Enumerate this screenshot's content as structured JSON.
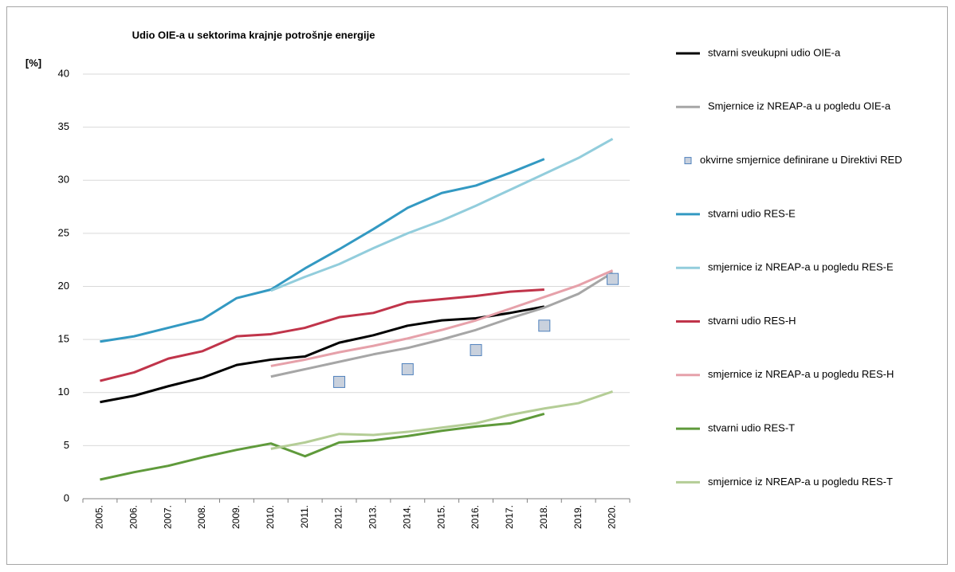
{
  "chart_data": {
    "type": "line",
    "title": "Udio OIE-a u sektorima krajnje potrošnje energije",
    "y_label": "[%]",
    "categories": [
      "2005.",
      "2006.",
      "2007.",
      "2008.",
      "2009.",
      "2010.",
      "2011.",
      "2012.",
      "2013.",
      "2014.",
      "2015.",
      "2016.",
      "2017.",
      "2018.",
      "2019.",
      "2020."
    ],
    "ylim": [
      0,
      40
    ],
    "yticks": [
      0,
      5,
      10,
      15,
      20,
      25,
      30,
      35,
      40
    ],
    "grid": true,
    "legend": "right",
    "series": [
      {
        "name": "stvarni sveukupni udio OIE-a",
        "color": "#000000",
        "style": "line",
        "values": [
          9.1,
          9.7,
          10.6,
          11.4,
          12.6,
          13.1,
          13.4,
          14.7,
          15.4,
          16.3,
          16.8,
          17.0,
          17.5,
          18.1,
          null,
          null
        ]
      },
      {
        "name": "Smjernice iz NREAP-a u pogledu OIE-a",
        "color": "#a6a6a6",
        "style": "line",
        "values": [
          null,
          null,
          null,
          null,
          null,
          11.5,
          12.2,
          12.9,
          13.6,
          14.2,
          15.0,
          15.9,
          17.0,
          18.0,
          19.3,
          21.3
        ]
      },
      {
        "name": "okvirne smjernice definirane u Direktivi RED",
        "color": "#c9d1dd",
        "style": "markers",
        "values": [
          null,
          null,
          null,
          null,
          null,
          null,
          null,
          11.0,
          null,
          12.2,
          null,
          14.0,
          null,
          16.3,
          null,
          20.7
        ]
      },
      {
        "name": "stvarni udio RES-E",
        "color": "#3399c2",
        "style": "line",
        "values": [
          14.8,
          15.3,
          16.1,
          16.9,
          18.9,
          19.7,
          21.7,
          23.5,
          25.4,
          27.4,
          28.8,
          29.5,
          30.7,
          32.0,
          null,
          null
        ]
      },
      {
        "name": "smjernice iz NREAP-a u pogledu RES-E",
        "color": "#92cddc",
        "style": "line",
        "values": [
          null,
          null,
          null,
          null,
          null,
          19.6,
          20.9,
          22.1,
          23.6,
          25.0,
          26.2,
          27.6,
          29.1,
          30.6,
          32.1,
          33.9
        ]
      },
      {
        "name": "stvarni udio RES-H",
        "color": "#c0344a",
        "style": "line",
        "values": [
          11.1,
          11.9,
          13.2,
          13.9,
          15.3,
          15.5,
          16.1,
          17.1,
          17.5,
          18.5,
          18.8,
          19.1,
          19.5,
          19.7,
          null,
          null
        ]
      },
      {
        "name": "smjernice iz NREAP-a u pogledu RES-H",
        "color": "#e6a1aa",
        "style": "line",
        "values": [
          null,
          null,
          null,
          null,
          null,
          12.5,
          13.1,
          13.8,
          14.4,
          15.1,
          15.9,
          16.8,
          17.9,
          19.0,
          20.1,
          21.5
        ]
      },
      {
        "name": "stvarni udio RES-T",
        "color": "#5f9a3b",
        "style": "line",
        "values": [
          1.8,
          2.5,
          3.1,
          3.9,
          4.6,
          5.2,
          4.0,
          5.3,
          5.5,
          5.9,
          6.4,
          6.8,
          7.1,
          8.0,
          null,
          null
        ]
      },
      {
        "name": "smjernice iz NREAP-a u pogledu RES-T",
        "color": "#b4cd96",
        "style": "line",
        "values": [
          null,
          null,
          null,
          null,
          null,
          4.7,
          5.3,
          6.1,
          6.0,
          6.3,
          6.7,
          7.1,
          7.9,
          8.5,
          9.0,
          10.1
        ]
      }
    ]
  }
}
